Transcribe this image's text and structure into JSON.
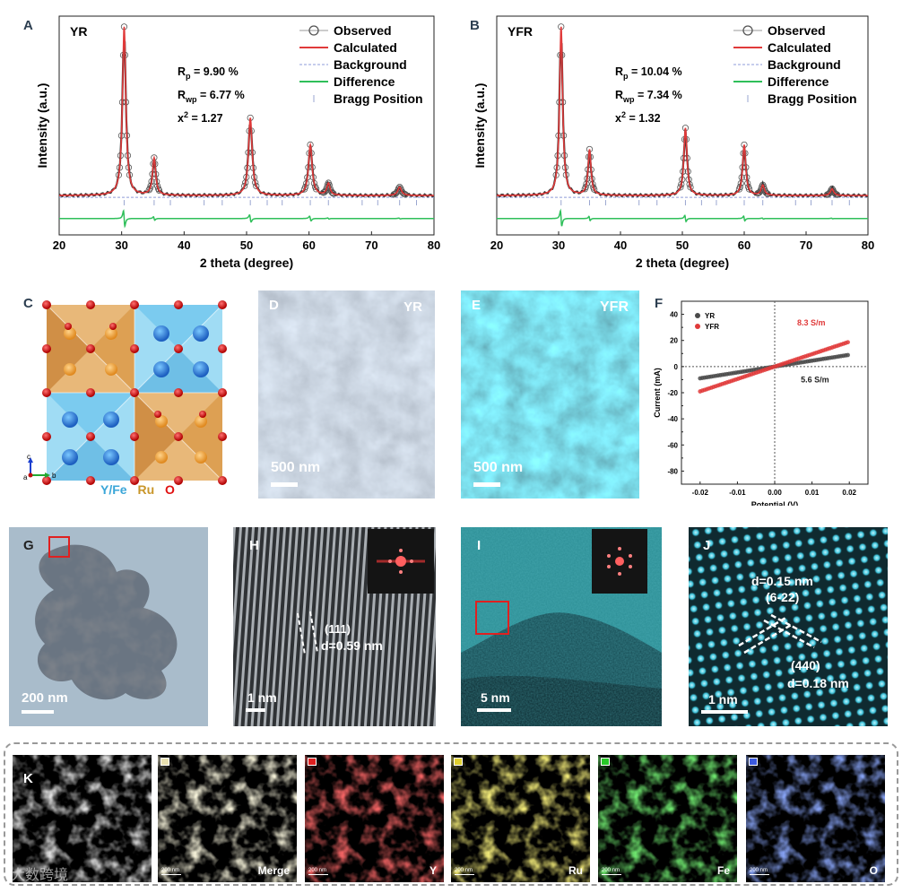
{
  "figure": {
    "letters": {
      "a": "A",
      "b": "B",
      "c": "C",
      "d": "D",
      "e": "E",
      "f": "F",
      "g": "G",
      "h": "H",
      "i": "I",
      "j": "J",
      "k": "K"
    },
    "colors": {
      "observed": "#555555",
      "calculated": "#e03a3a",
      "background": "#8e9bd8",
      "difference": "#2fbf5a",
      "bragg": "#9aa6d0",
      "yr": "#4a4a4a",
      "yfr": "#e03a3a",
      "text_dark": "#2c3e50"
    }
  },
  "chart_data": [
    {
      "id": "A",
      "type": "line",
      "title": "YR",
      "xlabel": "2 theta (degree)",
      "ylabel": "Intensity (a.u.)",
      "xlim": [
        20,
        80
      ],
      "xticks": [
        20,
        30,
        40,
        50,
        60,
        70,
        80
      ],
      "legend": [
        "Observed",
        "Calculated",
        "Background",
        "Difference",
        "Bragg Position"
      ],
      "stats": {
        "rp_label": "R",
        "rp_sub": "p",
        "rp_value": " = 9.90 %",
        "rwp_label": "R",
        "rwp_sub": "wp",
        "rwp_value": " = 6.77 %",
        "chi_label": "x",
        "chi_sup": "2",
        "chi_value": " = 1.27"
      },
      "peaks": [
        {
          "pos": 30.4,
          "height": 1.0,
          "width": 0.32
        },
        {
          "pos": 35.2,
          "height": 0.22,
          "width": 0.3
        },
        {
          "pos": 50.6,
          "height": 0.46,
          "width": 0.35
        },
        {
          "pos": 60.2,
          "height": 0.3,
          "width": 0.35
        },
        {
          "pos": 63.1,
          "height": 0.07,
          "width": 0.3
        },
        {
          "pos": 74.5,
          "height": 0.05,
          "width": 0.35
        }
      ],
      "bragg": [
        30.4,
        35.2,
        37.8,
        43.2,
        46.1,
        50.6,
        53.3,
        55.7,
        60.2,
        63.1,
        68.5,
        71.0,
        74.5,
        77.2
      ]
    },
    {
      "id": "B",
      "type": "line",
      "title": "YFR",
      "xlabel": "2 theta (degree)",
      "ylabel": "Intensity (a.u.)",
      "xlim": [
        20,
        80
      ],
      "xticks": [
        20,
        30,
        40,
        50,
        60,
        70,
        80
      ],
      "legend": [
        "Observed",
        "Calculated",
        "Background",
        "Difference",
        "Bragg Position"
      ],
      "stats": {
        "rp_label": "R",
        "rp_sub": "p",
        "rp_value": " = 10.04 %",
        "rwp_label": "R",
        "rwp_sub": "wp",
        "rwp_value": " = 7.34 %",
        "chi_label": "x",
        "chi_sup": "2",
        "chi_value": " = 1.32"
      },
      "peaks": [
        {
          "pos": 30.4,
          "height": 1.0,
          "width": 0.3
        },
        {
          "pos": 35.0,
          "height": 0.27,
          "width": 0.28
        },
        {
          "pos": 50.5,
          "height": 0.4,
          "width": 0.3
        },
        {
          "pos": 60.0,
          "height": 0.3,
          "width": 0.3
        },
        {
          "pos": 63.0,
          "height": 0.06,
          "width": 0.3
        },
        {
          "pos": 74.2,
          "height": 0.04,
          "width": 0.3
        }
      ],
      "bragg": [
        30.4,
        35.0,
        37.6,
        43.0,
        45.9,
        50.5,
        53.1,
        55.5,
        60.0,
        63.0,
        68.3,
        70.8,
        74.2,
        77.0
      ]
    },
    {
      "id": "F",
      "type": "scatter",
      "xlabel": "Potential (V)",
      "ylabel": "Current (mA)",
      "xlim": [
        -0.025,
        0.025
      ],
      "ylim": [
        -90,
        50
      ],
      "xticks": [
        -0.02,
        -0.01,
        0.0,
        0.01,
        0.02
      ],
      "xtick_labels": [
        "-0.02",
        "-0.01",
        "0.00",
        "0.01",
        "0.02"
      ],
      "yticks": [
        40,
        20,
        0,
        -20,
        -40,
        -60,
        -80
      ],
      "yticks_minor": [
        -90,
        -70,
        -50,
        -30,
        -10,
        10,
        30,
        50
      ],
      "series": [
        {
          "name": "YR",
          "slope": 450,
          "x_range": [
            -0.02,
            0.02
          ],
          "annotation": "5.6 S/m"
        },
        {
          "name": "YFR",
          "slope": 950,
          "x_range": [
            -0.02,
            0.02
          ],
          "annotation": "8.3 S/m"
        }
      ]
    }
  ],
  "panel_c": {
    "legend_yfe": "Y/Fe",
    "legend_ru": "Ru",
    "legend_o": "O",
    "axis_c": "c",
    "axis_a": "a",
    "axis_b": "b"
  },
  "panel_d": {
    "sample": "YR",
    "scale": "500 nm"
  },
  "panel_e": {
    "sample": "YFR",
    "scale": "500 nm"
  },
  "panel_g": {
    "scale": "200 nm"
  },
  "panel_h": {
    "scale": "1 nm",
    "plane": "(111)",
    "spacing": "d=0.59 nm"
  },
  "panel_i": {
    "scale": "5 nm"
  },
  "panel_j": {
    "scale": "1 nm",
    "spacing1": "d=0.15 nm",
    "plane1": "(6-22)",
    "plane2": "(440)",
    "spacing2": "d=0.18 nm"
  },
  "panel_k": {
    "tiles": [
      {
        "label": "",
        "color": "#bbbbbb"
      },
      {
        "label": "Merge",
        "color": "#e8e0b0"
      },
      {
        "label": "Y",
        "color": "#e02020"
      },
      {
        "label": "Ru",
        "color": "#e0d030"
      },
      {
        "label": "Fe",
        "color": "#28c828"
      },
      {
        "label": "O",
        "color": "#3c5ae0"
      }
    ],
    "tile_scale": "200 nm",
    "watermark": "大数跨境"
  }
}
